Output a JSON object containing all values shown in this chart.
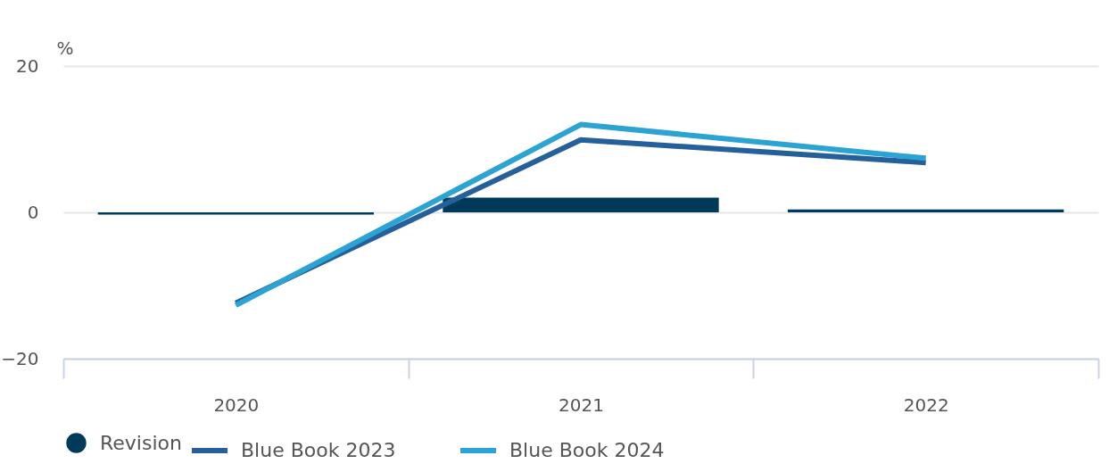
{
  "chart_data": {
    "type": "line",
    "ylabel": "%",
    "categories": [
      "2020",
      "2021",
      "2022"
    ],
    "series": [
      {
        "name": "Blue Book 2023",
        "color": "#25609a",
        "values": [
          -12.4,
          9.9,
          6.8
        ]
      },
      {
        "name": "Blue Book 2024",
        "color": "#2ba3d3",
        "values": [
          -12.7,
          12.0,
          7.4
        ]
      },
      {
        "name": "Revision",
        "type": "bar",
        "color": "#003a5a",
        "values": [
          -0.3,
          2.0,
          0.4
        ]
      }
    ],
    "ylim": [
      -20,
      20
    ],
    "yticks": [
      -20,
      0,
      20
    ],
    "grid": "y",
    "legend": "bottom"
  }
}
